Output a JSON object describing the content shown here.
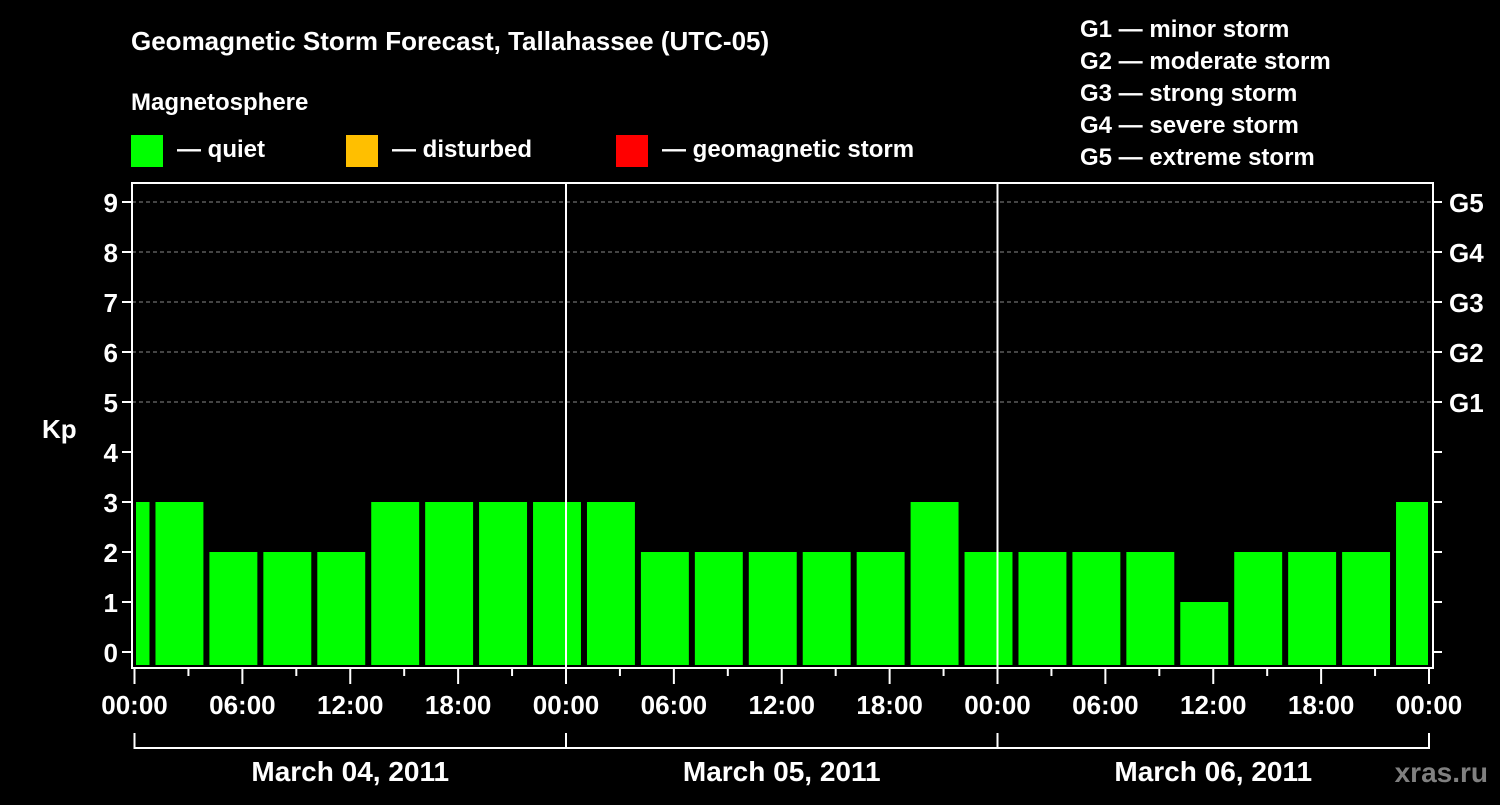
{
  "chart_data": {
    "type": "bar",
    "title": "Geomagnetic Storm Forecast, Tallahassee (UTC-05)",
    "legend_title": "Magnetosphere",
    "legend": [
      {
        "label": "— quiet",
        "color": "#00ff00"
      },
      {
        "label": "— disturbed",
        "color": "#ffbf00"
      },
      {
        "label": "— geomagnetic storm",
        "color": "#ff0000"
      }
    ],
    "storm_scale": [
      "G1 — minor storm",
      "G2 — moderate storm",
      "G3 — strong storm",
      "G4 — severe storm",
      "G5 — extreme storm"
    ],
    "ylabel": "Kp",
    "ylim": [
      0,
      9
    ],
    "yticks": [
      "0",
      "1",
      "2",
      "3",
      "4",
      "5",
      "6",
      "7",
      "8",
      "9"
    ],
    "right_ticks": [
      {
        "kp": 5,
        "label": "G1"
      },
      {
        "kp": 6,
        "label": "G2"
      },
      {
        "kp": 7,
        "label": "G3"
      },
      {
        "kp": 8,
        "label": "G4"
      },
      {
        "kp": 9,
        "label": "G5"
      }
    ],
    "xlim_hours": [
      0,
      72
    ],
    "xticks": [
      "00:00",
      "06:00",
      "12:00",
      "18:00",
      "00:00",
      "06:00",
      "12:00",
      "18:00",
      "00:00",
      "06:00",
      "12:00",
      "18:00",
      "00:00"
    ],
    "days": [
      "March 04, 2011",
      "March 05, 2011",
      "March 06, 2011"
    ],
    "bar_start_hour": -2,
    "bar_step_hours": 3,
    "values": [
      3,
      3,
      2,
      2,
      2,
      3,
      3,
      3,
      3,
      3,
      2,
      2,
      2,
      2,
      2,
      3,
      2,
      2,
      2,
      2,
      1,
      2,
      2,
      2,
      3
    ],
    "bar_color": "#00ff00",
    "grid": "dashed horizontal at Kp 5-9",
    "watermark": "xras.ru"
  }
}
